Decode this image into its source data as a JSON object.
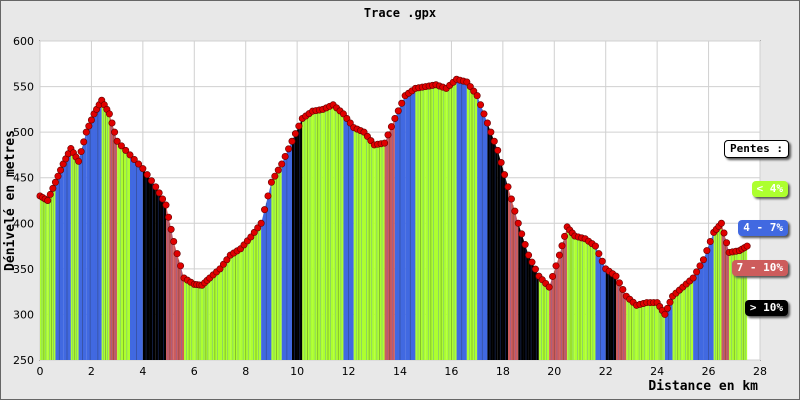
{
  "chart_data": {
    "type": "area",
    "title": "Trace .gpx",
    "xlabel": "Distance en km",
    "ylabel": "Dénivelé en metres",
    "xlim": [
      0,
      28
    ],
    "ylim": [
      250,
      600
    ],
    "xticks": [
      0,
      2,
      4,
      6,
      8,
      10,
      12,
      14,
      16,
      18,
      20,
      22,
      24,
      26,
      28
    ],
    "yticks": [
      250,
      300,
      350,
      400,
      450,
      500,
      550,
      600
    ],
    "grid": true,
    "legend_position": "right",
    "legend": {
      "title": "Pentes :",
      "items": [
        {
          "label": "< 4%",
          "color": "#adff2f",
          "text_color": "#ffffff"
        },
        {
          "label": "4 - 7%",
          "color": "#4169e1",
          "text_color": "#ffffff"
        },
        {
          "label": "7 - 10%",
          "color": "#cd5c5c",
          "text_color": "#ffffff"
        },
        {
          "label": "> 10%",
          "color": "#000000",
          "text_color": "#ffffff"
        }
      ]
    },
    "x": [
      0,
      0.3,
      0.6,
      0.9,
      1.2,
      1.5,
      1.8,
      2.1,
      2.4,
      2.7,
      3.0,
      3.5,
      4.0,
      4.5,
      4.9,
      5.2,
      5.6,
      6.0,
      6.3,
      6.6,
      7.0,
      7.4,
      7.8,
      8.2,
      8.6,
      9.0,
      9.4,
      9.8,
      10.2,
      10.6,
      11.0,
      11.4,
      11.8,
      12.2,
      12.6,
      13.0,
      13.4,
      13.8,
      14.2,
      14.6,
      15.0,
      15.4,
      15.8,
      16.2,
      16.6,
      17.0,
      17.4,
      17.8,
      18.2,
      18.6,
      19.0,
      19.4,
      19.8,
      20.2,
      20.5,
      20.8,
      21.2,
      21.6,
      22.0,
      22.4,
      22.8,
      23.2,
      23.6,
      24.0,
      24.3,
      24.6,
      25.0,
      25.4,
      25.8,
      26.2,
      26.5,
      26.8,
      27.2,
      27.5
    ],
    "y": [
      430,
      425,
      445,
      465,
      482,
      468,
      500,
      520,
      535,
      520,
      490,
      475,
      460,
      440,
      420,
      380,
      340,
      333,
      332,
      340,
      350,
      365,
      372,
      385,
      400,
      445,
      465,
      490,
      515,
      523,
      525,
      530,
      520,
      505,
      500,
      486,
      488,
      515,
      540,
      548,
      550,
      552,
      548,
      558,
      555,
      540,
      510,
      480,
      440,
      400,
      365,
      342,
      330,
      365,
      396,
      386,
      383,
      375,
      350,
      342,
      320,
      310,
      313,
      313,
      300,
      320,
      330,
      340,
      360,
      390,
      400,
      368,
      370,
      375
    ],
    "segment_slopes": [
      "low",
      "low",
      "mid",
      "mid",
      "low",
      "mid",
      "mid",
      "mid",
      "low",
      "steep",
      "low",
      "mid",
      "high",
      "high",
      "steep",
      "steep",
      "low",
      "low",
      "low",
      "low",
      "low",
      "low",
      "low",
      "low",
      "mid",
      "low",
      "mid",
      "high",
      "low",
      "low",
      "low",
      "low",
      "mid",
      "low",
      "low",
      "low",
      "steep",
      "mid",
      "mid",
      "low",
      "low",
      "low",
      "low",
      "mid",
      "low",
      "mid",
      "high",
      "high",
      "steep",
      "high",
      "high",
      "low",
      "steep",
      "steep",
      "low",
      "low",
      "low",
      "mid",
      "high",
      "steep",
      "low",
      "low",
      "low",
      "low",
      "mid",
      "low",
      "low",
      "mid",
      "mid",
      "low",
      "steep",
      "low",
      "low",
      "low"
    ]
  }
}
